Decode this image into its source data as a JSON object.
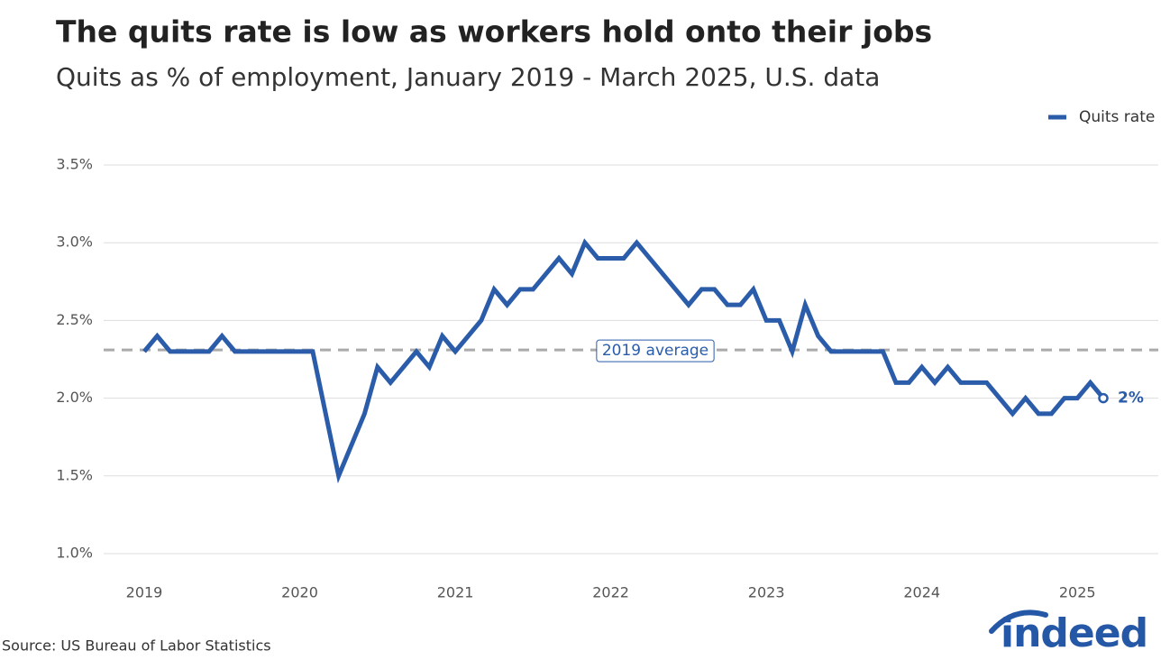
{
  "chart_data": {
    "type": "line",
    "title": "The quits rate is low as workers hold onto their jobs",
    "subtitle": "Quits as % of employment, January 2019 - March 2025, U.S. data",
    "source": "Source: US Bureau of Labor Statistics",
    "logo": "indeed",
    "legend": "top-right",
    "grid": true,
    "x": [
      "2019-01",
      "2019-02",
      "2019-03",
      "2019-04",
      "2019-05",
      "2019-06",
      "2019-07",
      "2019-08",
      "2019-09",
      "2019-10",
      "2019-11",
      "2019-12",
      "2020-01",
      "2020-02",
      "2020-03",
      "2020-04",
      "2020-05",
      "2020-06",
      "2020-07",
      "2020-08",
      "2020-09",
      "2020-10",
      "2020-11",
      "2020-12",
      "2021-01",
      "2021-02",
      "2021-03",
      "2021-04",
      "2021-05",
      "2021-06",
      "2021-07",
      "2021-08",
      "2021-09",
      "2021-10",
      "2021-11",
      "2021-12",
      "2022-01",
      "2022-02",
      "2022-03",
      "2022-04",
      "2022-05",
      "2022-06",
      "2022-07",
      "2022-08",
      "2022-09",
      "2022-10",
      "2022-11",
      "2022-12",
      "2023-01",
      "2023-02",
      "2023-03",
      "2023-04",
      "2023-05",
      "2023-06",
      "2023-07",
      "2023-08",
      "2023-09",
      "2023-10",
      "2023-11",
      "2023-12",
      "2024-01",
      "2024-02",
      "2024-03",
      "2024-04",
      "2024-05",
      "2024-06",
      "2024-07",
      "2024-08",
      "2024-09",
      "2024-10",
      "2024-11",
      "2024-12",
      "2025-01",
      "2025-02",
      "2025-03"
    ],
    "xticks": [
      2019,
      2020,
      2021,
      2022,
      2023,
      2024,
      2025
    ],
    "series": [
      {
        "name": "Quits rate",
        "color": "#2a5caa",
        "values": [
          2.3,
          2.4,
          2.3,
          2.3,
          2.3,
          2.3,
          2.4,
          2.3,
          2.3,
          2.3,
          2.3,
          2.3,
          2.3,
          2.3,
          1.9,
          1.5,
          1.7,
          1.9,
          2.2,
          2.1,
          2.2,
          2.3,
          2.2,
          2.4,
          2.3,
          2.4,
          2.5,
          2.7,
          2.6,
          2.7,
          2.7,
          2.8,
          2.9,
          2.8,
          3.0,
          2.9,
          2.9,
          2.9,
          3.0,
          2.9,
          2.8,
          2.7,
          2.6,
          2.7,
          2.7,
          2.6,
          2.6,
          2.7,
          2.5,
          2.5,
          2.3,
          2.6,
          2.4,
          2.3,
          2.3,
          2.3,
          2.3,
          2.3,
          2.1,
          2.1,
          2.2,
          2.1,
          2.2,
          2.1,
          2.1,
          2.1,
          2.0,
          1.9,
          2.0,
          1.9,
          1.9,
          2.0,
          2.0,
          2.1,
          2.0
        ]
      }
    ],
    "end_label": "2%",
    "reference_line": {
      "value": 2.31,
      "label": "2019 average",
      "color": "#aaaaaa"
    },
    "ylim": [
      1.0,
      3.5
    ],
    "yticks": [
      {
        "value": 1.0,
        "label": "1.0%"
      },
      {
        "value": 1.5,
        "label": "1.5%"
      },
      {
        "value": 2.0,
        "label": "2.0%"
      },
      {
        "value": 2.5,
        "label": "2.5%"
      },
      {
        "value": 3.0,
        "label": "3.0%"
      },
      {
        "value": 3.5,
        "label": "3.5%"
      }
    ]
  }
}
